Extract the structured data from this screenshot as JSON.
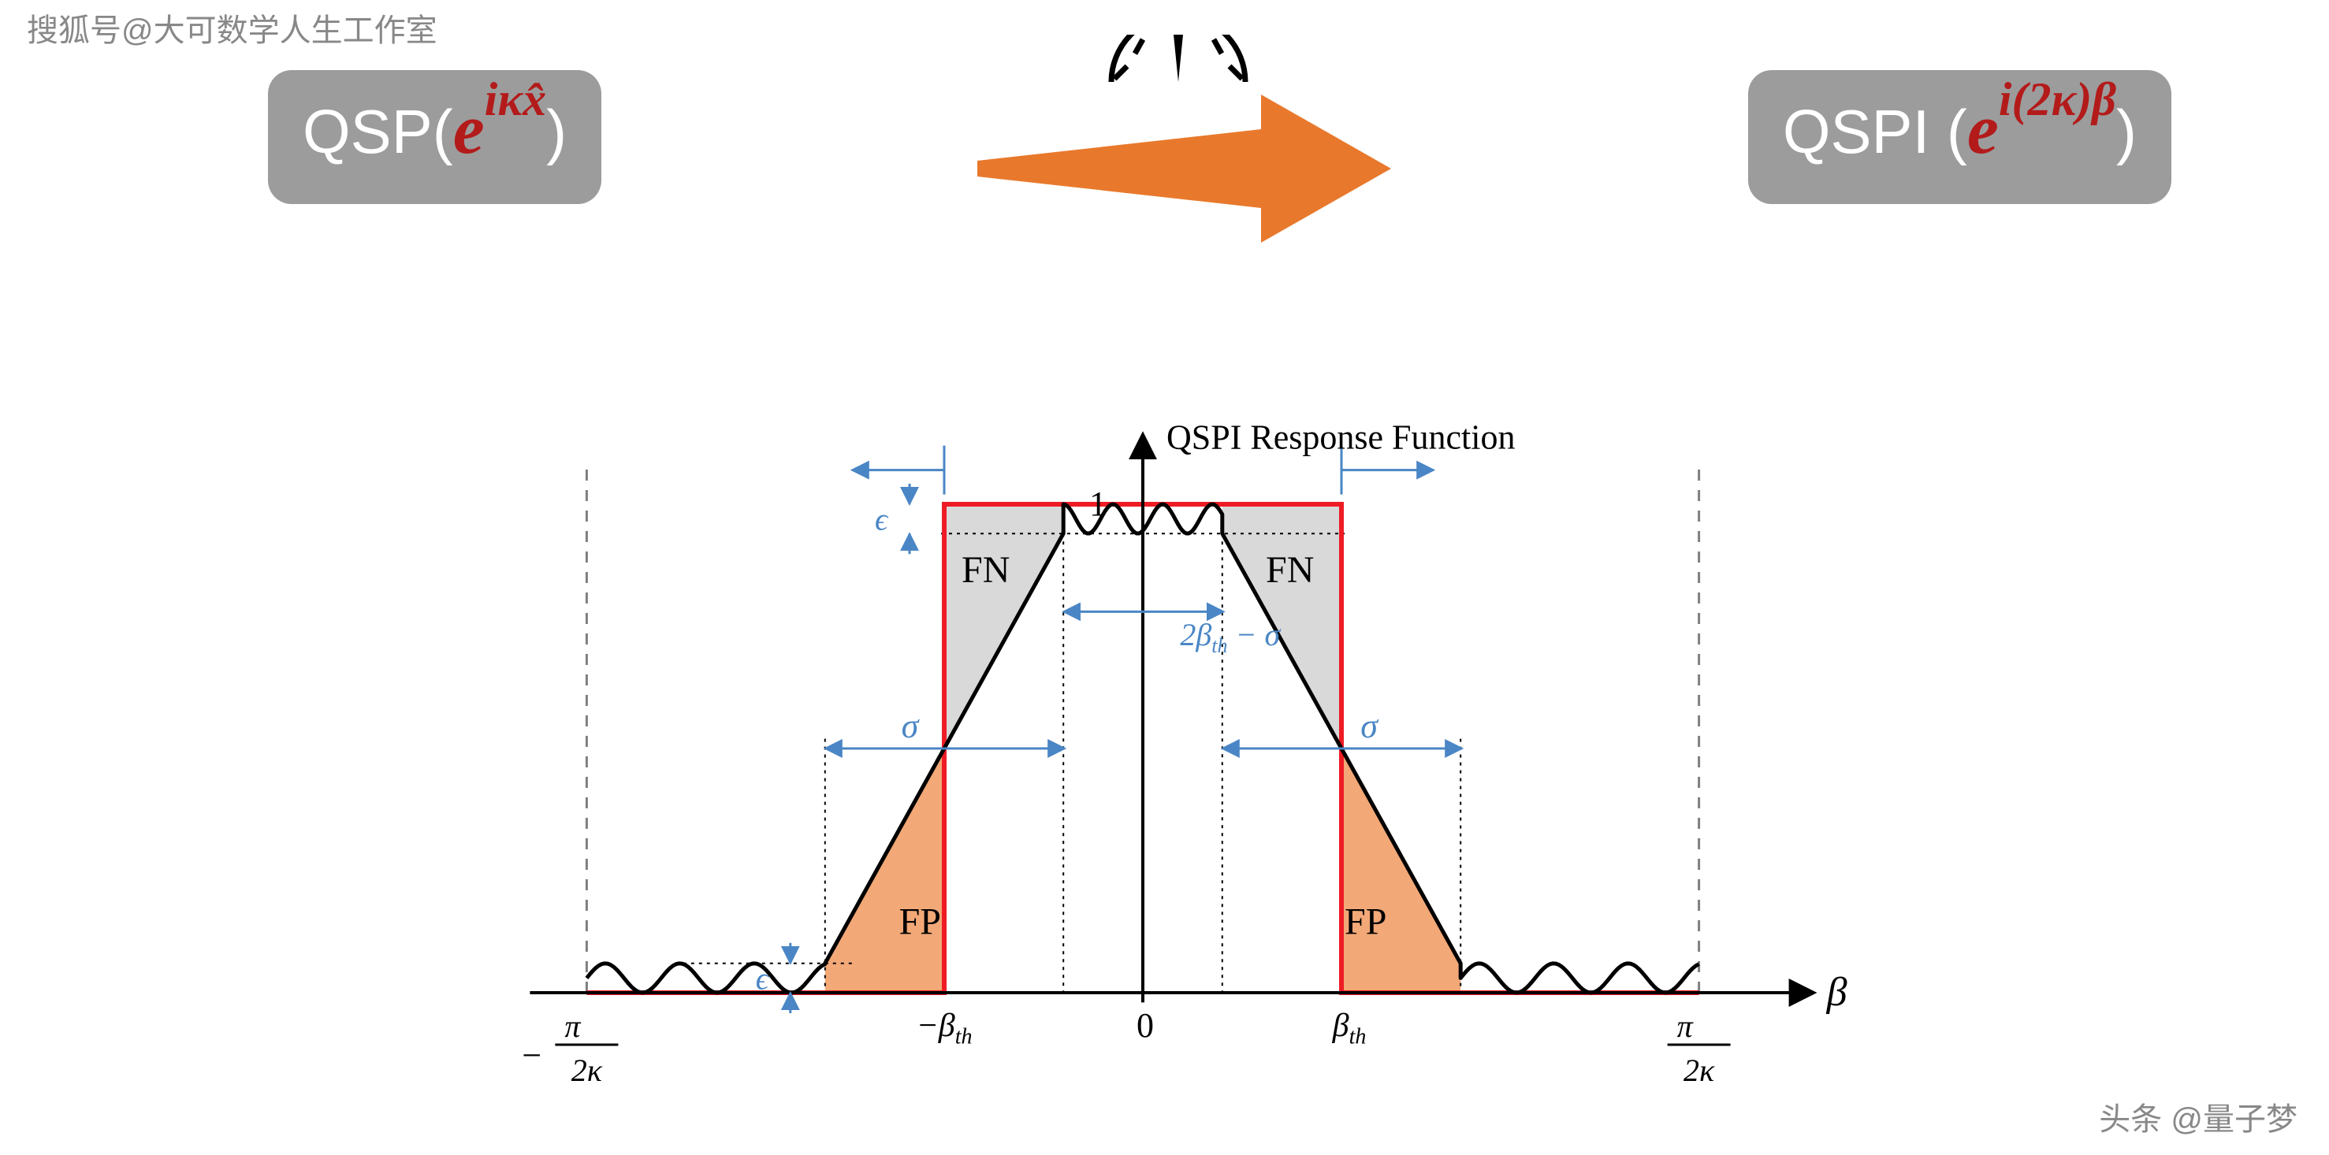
{
  "watermarks": {
    "top_left": "搜狐号@大可数学人生工作室",
    "bottom_right": "头条 @量子梦"
  },
  "top_row": {
    "left_box": {
      "bg_color": "#9c9c9c",
      "prefix": "QSP(",
      "exp_base": "e",
      "exp_sup": "iκx̂",
      "exp_color": "#b31b1b",
      "suffix": ")"
    },
    "right_box": {
      "bg_color": "#9c9c9c",
      "prefix": "QSPI (",
      "exp_base": "e",
      "exp_sup": "i(2κ)β",
      "exp_color": "#b31b1b",
      "suffix": " )"
    },
    "arrow": {
      "fill": "#e8792c",
      "gauge_stroke": "#000000"
    }
  },
  "chart": {
    "type": "function-plot",
    "title": "QSPI Response Function",
    "title_fontsize": 44,
    "x_axis_label": "β",
    "x_ticks": [
      "−π/2κ",
      "−β_th",
      "0",
      "β_th",
      "π/2κ"
    ],
    "y_ticks": [
      "1"
    ],
    "xlim": [
      -1.1,
      1.25
    ],
    "ylim": [
      -0.05,
      1.15
    ],
    "colors": {
      "axis": "#000000",
      "ideal_box": "#ee1c25",
      "curve": "#000000",
      "fn_fill": "#d9d9d9",
      "fp_fill": "#f2a877",
      "dashed_vertical": "#7f7f7f",
      "annotation": "#4a86c5",
      "tick_text": "#000000"
    },
    "line_widths": {
      "axis": 4,
      "curve": 5,
      "ideal_box": 6,
      "dashed": 3
    },
    "geometry": {
      "origin_x": 850,
      "origin_y": 860,
      "x_scale": 720,
      "y_scale": 620,
      "beta_th": 0.35,
      "sigma": 0.42,
      "epsilon": 0.06,
      "pi_over_2k": 0.98
    },
    "labels": {
      "fn_left": "FN",
      "fn_right": "FN",
      "fp_left": "FP",
      "fp_right": "FP",
      "sigma_left": "σ",
      "sigma_right": "σ",
      "epsilon_top": "ϵ",
      "epsilon_bottom": "ϵ",
      "center_width": "2β_th − σ"
    }
  }
}
